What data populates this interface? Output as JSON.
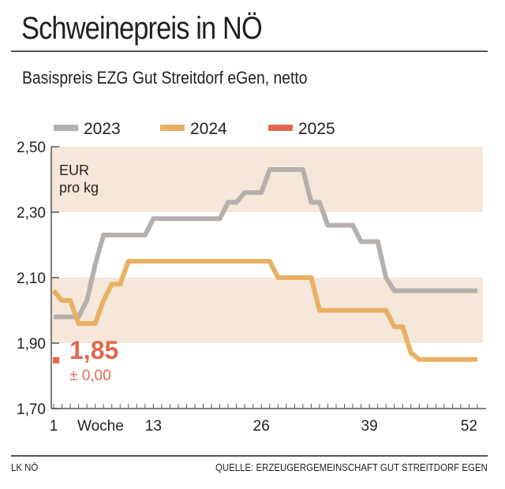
{
  "header": {
    "title": "Schweinepreis in NÖ",
    "subtitle": "Basispreis EZG Gut Streitdorf eGen, netto"
  },
  "footer": {
    "left": "LK NÖ",
    "right": "QUELLE: ERZEUGERGEMEINSCHAFT GUT STREITDORF EGEN"
  },
  "chart_data": {
    "type": "line",
    "title": "Schweinepreis in NÖ",
    "ylabel": "EUR pro kg",
    "xlabel": "Woche",
    "ylim": [
      1.7,
      2.5
    ],
    "xlim": [
      1,
      52
    ],
    "y_ticks": [
      "2,50",
      "2,30",
      "2,10",
      "1,90",
      "1,70"
    ],
    "y_tick_values": [
      2.5,
      2.3,
      2.1,
      1.9,
      1.7
    ],
    "x_ticks": [
      "1",
      "13",
      "26",
      "39",
      "52"
    ],
    "x_tick_values": [
      1,
      13,
      26,
      39,
      52
    ],
    "bands": [
      [
        2.3,
        2.5
      ],
      [
        1.9,
        2.1
      ]
    ],
    "legend": "top",
    "series": [
      {
        "name": "2023",
        "color": "#b5b0ad",
        "weeks": [
          1,
          2,
          3,
          4,
          5,
          6,
          7,
          8,
          9,
          10,
          11,
          12,
          13,
          14,
          15,
          16,
          17,
          18,
          19,
          20,
          21,
          22,
          23,
          24,
          25,
          26,
          27,
          28,
          29,
          30,
          31,
          32,
          33,
          34,
          35,
          36,
          37,
          38,
          39,
          40,
          41,
          42,
          43,
          44,
          45,
          46,
          47,
          48,
          49,
          50,
          51,
          52
        ],
        "values": [
          1.98,
          1.98,
          1.98,
          1.98,
          2.03,
          2.14,
          2.23,
          2.23,
          2.23,
          2.23,
          2.23,
          2.23,
          2.28,
          2.28,
          2.28,
          2.28,
          2.28,
          2.28,
          2.28,
          2.28,
          2.28,
          2.33,
          2.33,
          2.36,
          2.36,
          2.36,
          2.43,
          2.43,
          2.43,
          2.43,
          2.43,
          2.33,
          2.33,
          2.26,
          2.26,
          2.26,
          2.26,
          2.21,
          2.21,
          2.21,
          2.1,
          2.06,
          2.06,
          2.06,
          2.06,
          2.06,
          2.06,
          2.06,
          2.06,
          2.06,
          2.06,
          2.06
        ]
      },
      {
        "name": "2024",
        "color": "#e8b063",
        "weeks": [
          1,
          2,
          3,
          4,
          5,
          6,
          7,
          8,
          9,
          10,
          11,
          12,
          13,
          14,
          15,
          16,
          17,
          18,
          19,
          20,
          21,
          22,
          23,
          24,
          25,
          26,
          27,
          28,
          29,
          30,
          31,
          32,
          33,
          34,
          35,
          36,
          37,
          38,
          39,
          40,
          41,
          42,
          43,
          44,
          45,
          46,
          47,
          48,
          49,
          50,
          51,
          52
        ],
        "values": [
          2.06,
          2.03,
          2.03,
          1.96,
          1.96,
          1.96,
          2.03,
          2.08,
          2.08,
          2.15,
          2.15,
          2.15,
          2.15,
          2.15,
          2.15,
          2.15,
          2.15,
          2.15,
          2.15,
          2.15,
          2.15,
          2.15,
          2.15,
          2.15,
          2.15,
          2.15,
          2.15,
          2.1,
          2.1,
          2.1,
          2.1,
          2.1,
          2.0,
          2.0,
          2.0,
          2.0,
          2.0,
          2.0,
          2.0,
          2.0,
          2.0,
          1.95,
          1.95,
          1.87,
          1.85,
          1.85,
          1.85,
          1.85,
          1.85,
          1.85,
          1.85,
          1.85
        ]
      },
      {
        "name": "2025",
        "color": "#e2674f",
        "weeks": [
          1
        ],
        "values": [
          1.85
        ]
      }
    ],
    "annotation": {
      "value_label": "1,85",
      "change_label": "± 0,00",
      "color": "#e2674f"
    },
    "band_color": "#f5e7d9",
    "axis_color": "#555555"
  }
}
